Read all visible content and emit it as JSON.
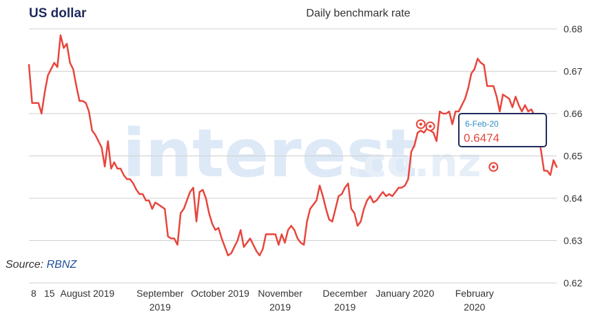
{
  "chart_data": {
    "type": "line",
    "title": "US dollar",
    "subtitle": "Daily benchmark rate",
    "source_prefix": "Source: ",
    "source_name": "RBNZ",
    "watermark_main": "interest",
    "watermark_suffix": ".co.nz",
    "ylim": [
      0.62,
      0.68
    ],
    "y_ticks": [
      {
        "v": 0.68,
        "label": "0.68"
      },
      {
        "v": 0.67,
        "label": "0.67"
      },
      {
        "v": 0.66,
        "label": "0.66"
      },
      {
        "v": 0.65,
        "label": "0.65"
      },
      {
        "v": 0.64,
        "label": "0.64"
      },
      {
        "v": 0.63,
        "label": "0.63"
      },
      {
        "v": 0.62,
        "label": "0.62"
      }
    ],
    "x_ticks": [
      {
        "x": 1.5,
        "line1": "8",
        "line2": ""
      },
      {
        "x": 6.5,
        "line1": "15",
        "line2": ""
      },
      {
        "x": 18.5,
        "line1": "August 2019",
        "line2": ""
      },
      {
        "x": 41.5,
        "line1": "September",
        "line2": "2019"
      },
      {
        "x": 60.5,
        "line1": "October 2019",
        "line2": ""
      },
      {
        "x": 79.5,
        "line1": "November",
        "line2": "2019"
      },
      {
        "x": 100,
        "line1": "December",
        "line2": "2019"
      },
      {
        "x": 119,
        "line1": "January 2020",
        "line2": ""
      },
      {
        "x": 141,
        "line1": "February",
        "line2": "2020"
      }
    ],
    "series": [
      {
        "color": "#e8453c",
        "values": [
          0.6715,
          0.6625,
          0.6625,
          0.6625,
          0.66,
          0.665,
          0.669,
          0.6705,
          0.672,
          0.671,
          0.6785,
          0.6755,
          0.6765,
          0.672,
          0.6705,
          0.6665,
          0.663,
          0.663,
          0.6625,
          0.6605,
          0.656,
          0.655,
          0.6535,
          0.652,
          0.6475,
          0.6535,
          0.647,
          0.6485,
          0.647,
          0.647,
          0.6455,
          0.6445,
          0.6445,
          0.6435,
          0.642,
          0.641,
          0.641,
          0.6395,
          0.6395,
          0.6375,
          0.639,
          0.6385,
          0.638,
          0.6375,
          0.631,
          0.6305,
          0.6305,
          0.629,
          0.6365,
          0.6375,
          0.6395,
          0.6415,
          0.6425,
          0.6345,
          0.6415,
          0.642,
          0.64,
          0.6365,
          0.634,
          0.6325,
          0.633,
          0.6305,
          0.6285,
          0.6265,
          0.627,
          0.6285,
          0.63,
          0.6325,
          0.6285,
          0.6295,
          0.6305,
          0.629,
          0.6275,
          0.6265,
          0.628,
          0.6315,
          0.6315,
          0.6315,
          0.6315,
          0.629,
          0.6315,
          0.6295,
          0.6325,
          0.6335,
          0.6325,
          0.6305,
          0.6295,
          0.629,
          0.6345,
          0.6375,
          0.6385,
          0.6395,
          0.643,
          0.6405,
          0.6375,
          0.635,
          0.6345,
          0.6375,
          0.6405,
          0.641,
          0.6425,
          0.6435,
          0.6375,
          0.6365,
          0.6335,
          0.6345,
          0.6375,
          0.6395,
          0.6405,
          0.639,
          0.6395,
          0.6405,
          0.6415,
          0.6405,
          0.641,
          0.6405,
          0.6415,
          0.6425,
          0.6425,
          0.643,
          0.6445,
          0.651,
          0.6525,
          0.6555,
          0.656,
          0.6555,
          0.6565,
          0.656,
          0.6555,
          0.6535,
          0.6605,
          0.66,
          0.66,
          0.6605,
          0.6575,
          0.6605,
          0.6605,
          0.662,
          0.6635,
          0.666,
          0.6695,
          0.6705,
          0.673,
          0.672,
          0.6715,
          0.6665,
          0.6665,
          0.6665,
          0.664,
          0.6605,
          0.6645,
          0.664,
          0.6635,
          0.6615,
          0.664,
          0.662,
          0.6605,
          0.662,
          0.6605,
          0.661,
          0.6595,
          0.656,
          0.6515,
          0.6465,
          0.6465,
          0.6455,
          0.649,
          0.6474
        ]
      }
    ],
    "markers": [
      {
        "x": 124,
        "y": 0.6575
      },
      {
        "x": 127,
        "y": 0.657
      },
      {
        "x": 147,
        "y": 0.6474
      }
    ],
    "tooltip": {
      "date": "6-Feb-20",
      "value": "0.6474"
    },
    "grid": true,
    "legend": "none"
  }
}
